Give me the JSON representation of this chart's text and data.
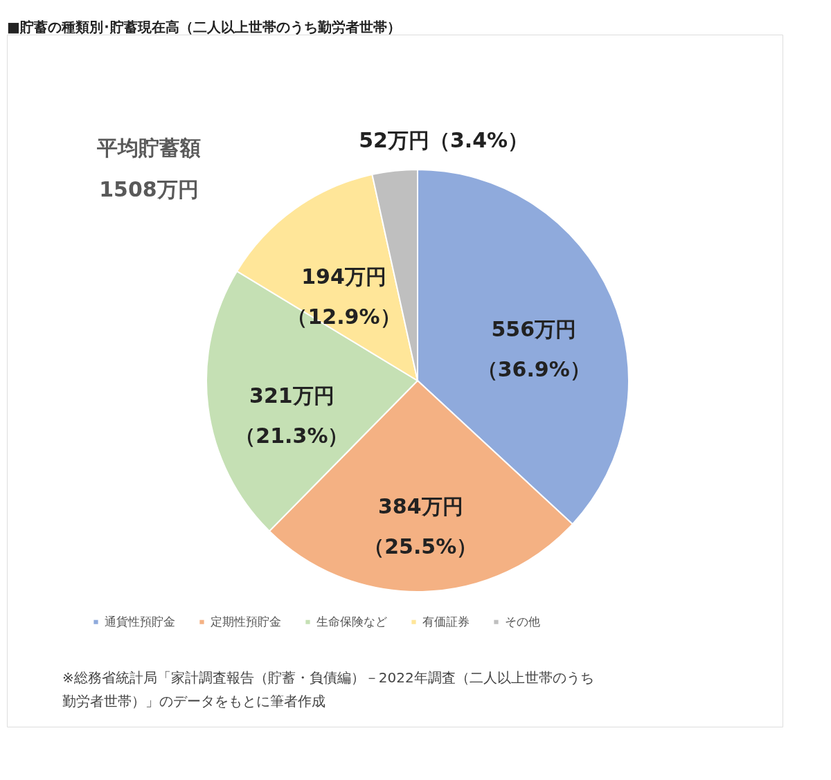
{
  "chart_data": {
    "type": "pie",
    "title": "■貯蓄の種類別･貯蓄現在高（二人以上世帯のうち勤労者世帯）",
    "categories": [
      "通貨性預貯金",
      "定期性預貯金",
      "生命保険など",
      "有価証券",
      "その他"
    ],
    "values": [
      556,
      384,
      321,
      194,
      52
    ],
    "colors": [
      "#8faadc",
      "#f4b183",
      "#c5e0b4",
      "#ffe699",
      "#bfbfbf"
    ],
    "value_labels": [
      "556万円（36.9%）",
      "384万円（25.5%）",
      "321万円（21.3%）",
      "194万円（12.9%）",
      "52万円（3.4%）"
    ],
    "legend": "bottom",
    "annotations": [
      "平均貯蓄額",
      "1508万円",
      "※総務省統計局「家計調査報告（貯蓄・負債編）－2022年調査（二人以上世帯のうち勤労者世帯）」のデータをもとに筆者作成"
    ]
  }
}
